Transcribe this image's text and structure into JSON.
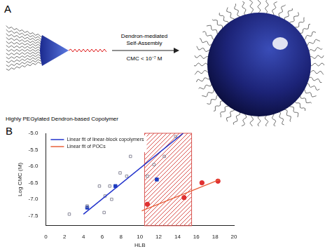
{
  "panel_a": {
    "label": "A",
    "molecule": "Highly PEGylated Dendron-based Copolymer",
    "arrow_text": [
      "Dendron-mediated",
      "Self-Assembly"
    ],
    "condition": "CMC < 10⁻⁷ M"
  },
  "chart_data": {
    "label": "B",
    "type": "scatter",
    "x_label": "HLB",
    "y_label": "Log CMC (M)",
    "xlim": [
      0,
      20
    ],
    "xticks": [
      0,
      2,
      4,
      6,
      8,
      10,
      12,
      14,
      16,
      18,
      20
    ],
    "ylim": [
      -7.8,
      -5.0
    ],
    "yticks": [
      {
        "value": -7.5,
        "label": "-7.5"
      },
      {
        "value": -7,
        "label": "-7.0"
      },
      {
        "value": -6.5,
        "label": "-6.5"
      },
      {
        "value": -6,
        "label": "-6.0"
      },
      {
        "value": -5.5,
        "label": "-5.5"
      },
      {
        "value": -5,
        "label": "-5.0"
      }
    ],
    "grid": false,
    "legend": "upper left",
    "shaded_region": {
      "x": [
        10.5,
        15.5
      ],
      "color": "#d9534f"
    },
    "series": [
      {
        "type": "line",
        "name": "Linear fit of linear-block copolymers",
        "color": "#2233cc",
        "line_style": "solid",
        "x": [
          4,
          14.6
        ],
        "values": [
          -7.45,
          -5.0
        ]
      },
      {
        "type": "line",
        "name": "Linear fit of POCs",
        "color": "#e8603a",
        "line_style": "solid",
        "x": [
          10.2,
          18.5
        ],
        "values": [
          -7.35,
          -6.4
        ]
      },
      {
        "type": "scatter",
        "color": "#8a8a9a",
        "marker": "square_open",
        "x": [
          2.5,
          4.4,
          5.7,
          6.2,
          6.3,
          6.8,
          7.0,
          7.9,
          8.6,
          9.0,
          10.8,
          11.5,
          12.6,
          13.8
        ],
        "values": [
          -7.45,
          -7.2,
          -6.6,
          -7.4,
          -6.9,
          -6.6,
          -7.0,
          -6.2,
          -6.3,
          -5.7,
          -6.3,
          -5.95,
          -5.7,
          -5.1
        ]
      },
      {
        "type": "scatter",
        "color": "#1f3fbf",
        "marker": "square",
        "x": [
          4.4,
          7.4,
          11.8
        ],
        "values": [
          -7.25,
          -6.6,
          -6.4
        ]
      },
      {
        "type": "scatter",
        "color": "#e03030",
        "marker": "circle",
        "x": [
          10.8,
          14.7,
          16.6,
          18.3
        ],
        "values": [
          -7.15,
          -6.95,
          -6.5,
          -6.45
        ]
      }
    ]
  }
}
